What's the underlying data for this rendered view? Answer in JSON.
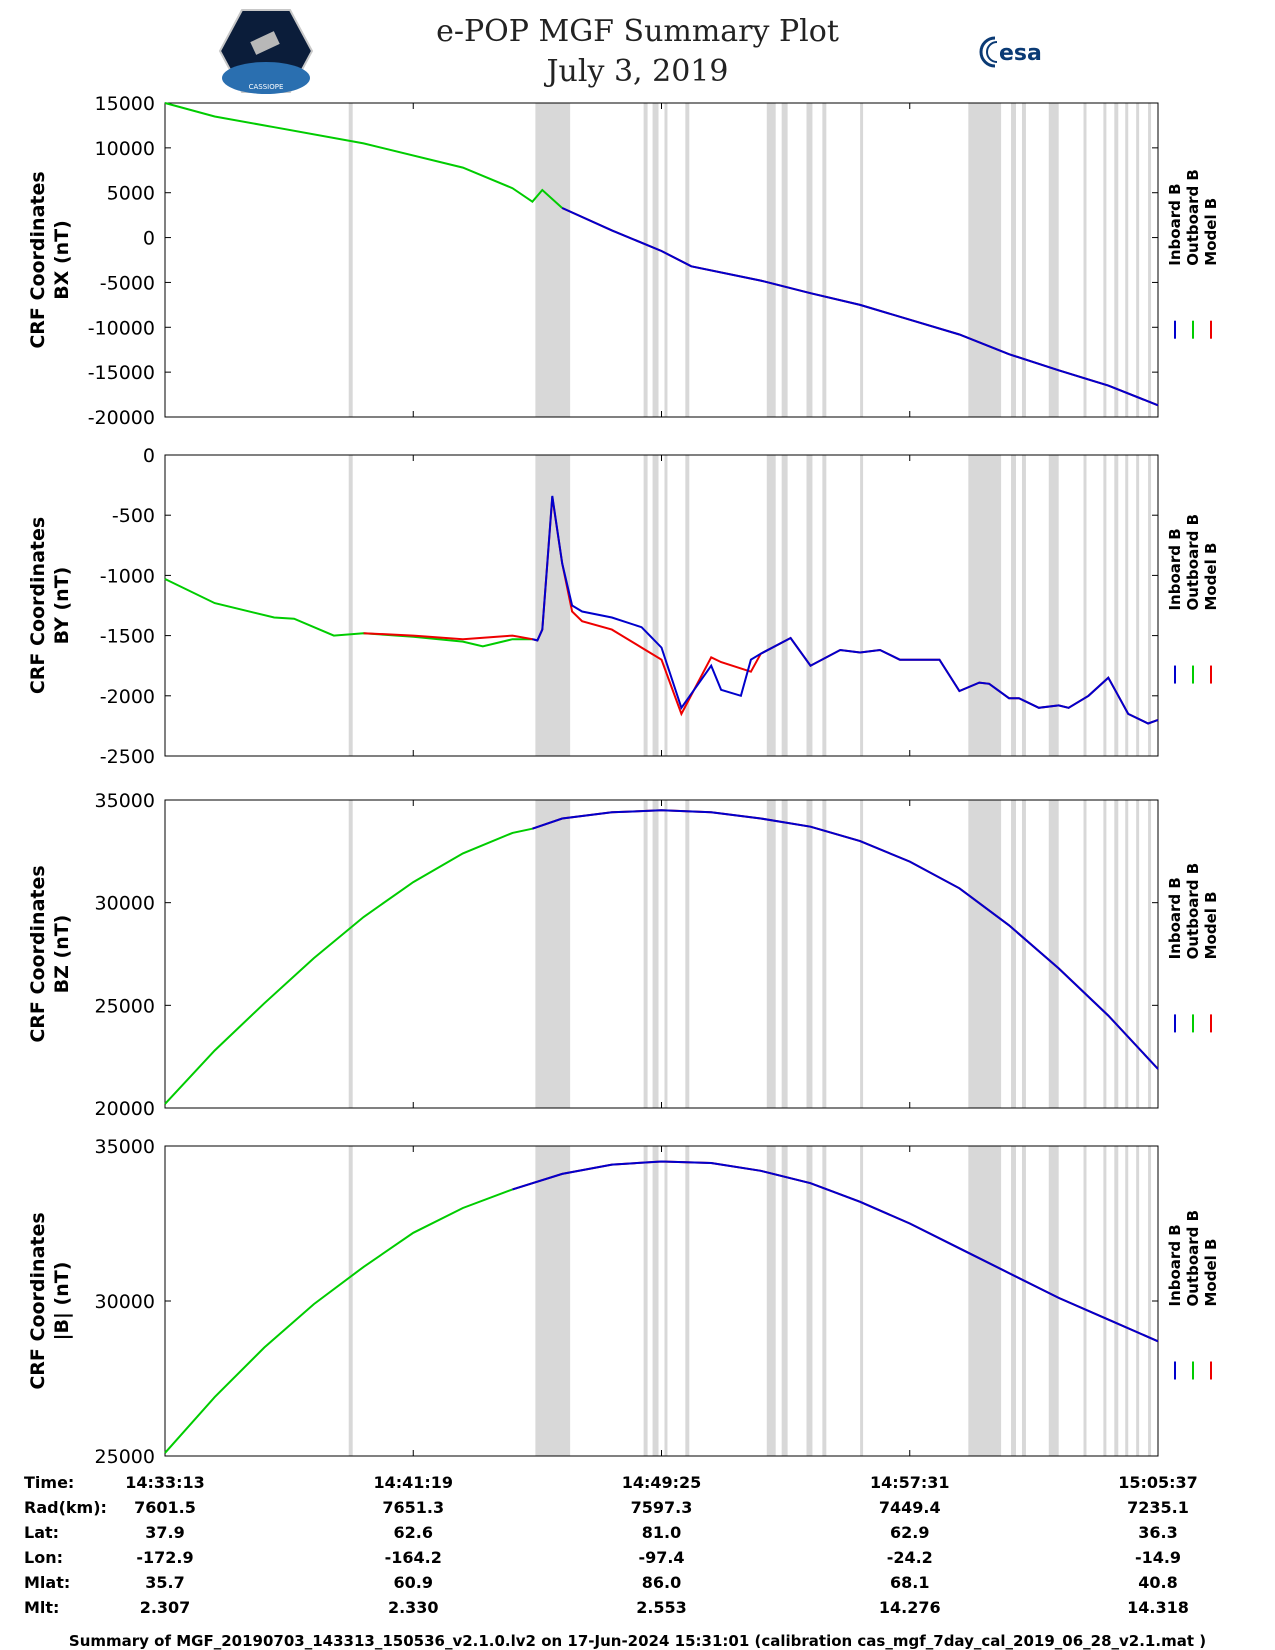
{
  "header": {
    "title": "e-POP MGF Summary Plot",
    "date": "July 3, 2019",
    "logo_left_text": "CASSIOPE",
    "logo_right_text": "esa"
  },
  "colors": {
    "inboard": "#0000cc",
    "outboard": "#00cc00",
    "model": "#ee0000",
    "shade": "#d8d8d8"
  },
  "chart_data": [
    {
      "type": "line",
      "ylabel_line1": "CRF Coordinates",
      "ylabel_line2": "BX (nT)",
      "ylim": [
        -20000,
        15000
      ],
      "yticks": [
        "15000",
        "10000",
        "5000",
        "0",
        "-5000",
        "-10000",
        "-15000",
        "-20000"
      ],
      "ytick_values": [
        15000,
        10000,
        5000,
        0,
        -5000,
        -10000,
        -15000,
        -20000
      ],
      "legend": [
        "Inboard B",
        "Outboard B",
        "Model B"
      ],
      "series": [
        {
          "name": "Outboard B",
          "color_key": "outboard",
          "x": [
            0,
            0.05,
            0.11,
            0.2,
            0.3,
            0.35,
            0.37,
            0.38,
            0.4
          ],
          "y": [
            15000,
            13500,
            12300,
            10500,
            7800,
            5500,
            4000,
            5300,
            3300
          ]
        },
        {
          "name": "Model B",
          "color_key": "model",
          "x": [
            0.4,
            0.45,
            0.5,
            0.53,
            0.6,
            0.65,
            0.7,
            0.8,
            0.85,
            0.9,
            0.95,
            1.0
          ],
          "y": [
            3300,
            800,
            -1500,
            -3200,
            -4800,
            -6200,
            -7500,
            -10800,
            -13000,
            -14800,
            -16500,
            -18700
          ]
        },
        {
          "name": "Inboard B",
          "color_key": "inboard",
          "x": [
            0.4,
            0.45,
            0.5,
            0.53,
            0.6,
            0.65,
            0.7,
            0.8,
            0.85,
            0.9,
            0.95,
            1.0
          ],
          "y": [
            3300,
            800,
            -1500,
            -3200,
            -4800,
            -6200,
            -7500,
            -10800,
            -13000,
            -14800,
            -16500,
            -18700
          ]
        }
      ]
    },
    {
      "type": "line",
      "ylabel_line1": "CRF Coordinates",
      "ylabel_line2": "BY (nT)",
      "ylim": [
        -2500,
        0
      ],
      "yticks": [
        "0",
        "-500",
        "-1000",
        "-1500",
        "-2000",
        "-2500"
      ],
      "ytick_values": [
        0,
        -500,
        -1000,
        -1500,
        -2000,
        -2500
      ],
      "legend": [
        "Inboard B",
        "Outboard B",
        "Model B"
      ],
      "series": [
        {
          "name": "Outboard B",
          "color_key": "outboard",
          "x": [
            0,
            0.05,
            0.11,
            0.13,
            0.17,
            0.2,
            0.25,
            0.3,
            0.32,
            0.35,
            0.37
          ],
          "y": [
            -1030,
            -1230,
            -1350,
            -1360,
            -1500,
            -1480,
            -1510,
            -1550,
            -1590,
            -1530,
            -1530
          ]
        },
        {
          "name": "Model B",
          "color_key": "model",
          "x": [
            0.2,
            0.25,
            0.3,
            0.35,
            0.37,
            0.375,
            0.38,
            0.385,
            0.39,
            0.4,
            0.41,
            0.42,
            0.45,
            0.48,
            0.5,
            0.52,
            0.55,
            0.56,
            0.59,
            0.6,
            0.63,
            0.65,
            0.68,
            0.7,
            0.72,
            0.74,
            0.75,
            0.78,
            0.8,
            0.82,
            0.83,
            0.85,
            0.86,
            0.88,
            0.9,
            0.91,
            0.93,
            0.95,
            0.96,
            0.97,
            0.99,
            1.0
          ],
          "y": [
            -1480,
            -1500,
            -1530,
            -1500,
            -1530,
            -1540,
            -1450,
            -900,
            -350,
            -900,
            -1300,
            -1380,
            -1450,
            -1600,
            -1700,
            -2150,
            -1680,
            -1720,
            -1800,
            -1650,
            -1520,
            -1750,
            -1620,
            -1640,
            -1620,
            -1700,
            -1700,
            -1700,
            -1960,
            -1890,
            -1900,
            -2020,
            -2020,
            -2100,
            -2080,
            -2100,
            -2000,
            -1850,
            -2000,
            -2150,
            -2230,
            -2200
          ]
        },
        {
          "name": "Inboard B",
          "color_key": "inboard",
          "x": [
            0.37,
            0.375,
            0.38,
            0.385,
            0.39,
            0.4,
            0.41,
            0.42,
            0.45,
            0.48,
            0.5,
            0.52,
            0.55,
            0.56,
            0.58,
            0.59,
            0.6,
            0.63,
            0.65,
            0.68,
            0.7,
            0.72,
            0.74,
            0.75,
            0.78,
            0.8,
            0.82,
            0.83,
            0.85,
            0.86,
            0.88,
            0.9,
            0.91,
            0.93,
            0.95,
            0.96,
            0.97,
            0.99,
            1.0
          ],
          "y": [
            -1530,
            -1540,
            -1450,
            -900,
            -340,
            -900,
            -1250,
            -1300,
            -1350,
            -1430,
            -1600,
            -2100,
            -1750,
            -1950,
            -2000,
            -1700,
            -1650,
            -1520,
            -1750,
            -1620,
            -1640,
            -1620,
            -1700,
            -1700,
            -1700,
            -1960,
            -1890,
            -1900,
            -2020,
            -2020,
            -2100,
            -2080,
            -2100,
            -2000,
            -1850,
            -2000,
            -2150,
            -2230,
            -2200
          ]
        }
      ]
    },
    {
      "type": "line",
      "ylabel_line1": "CRF Coordinates",
      "ylabel_line2": "BZ (nT)",
      "ylim": [
        20000,
        35000
      ],
      "yticks": [
        "35000",
        "30000",
        "25000",
        "20000"
      ],
      "ytick_values": [
        35000,
        30000,
        25000,
        20000
      ],
      "legend": [
        "Inboard B",
        "Outboard B",
        "Model B"
      ],
      "series": [
        {
          "name": "Outboard B",
          "color_key": "outboard",
          "x": [
            0,
            0.05,
            0.1,
            0.15,
            0.2,
            0.25,
            0.3,
            0.35,
            0.37
          ],
          "y": [
            20200,
            22800,
            25100,
            27300,
            29300,
            31000,
            32400,
            33400,
            33600
          ]
        },
        {
          "name": "Model B",
          "color_key": "model",
          "x": [
            0.37,
            0.4,
            0.45,
            0.5,
            0.55,
            0.6,
            0.65,
            0.7,
            0.75,
            0.8,
            0.85,
            0.9,
            0.95,
            1.0
          ],
          "y": [
            33600,
            34100,
            34400,
            34500,
            34400,
            34100,
            33700,
            33000,
            32000,
            30700,
            28900,
            26800,
            24500,
            21900
          ]
        },
        {
          "name": "Inboard B",
          "color_key": "inboard",
          "x": [
            0.37,
            0.4,
            0.45,
            0.5,
            0.55,
            0.6,
            0.65,
            0.7,
            0.75,
            0.8,
            0.85,
            0.9,
            0.95,
            1.0
          ],
          "y": [
            33600,
            34100,
            34400,
            34500,
            34400,
            34100,
            33700,
            33000,
            32000,
            30700,
            28900,
            26800,
            24500,
            21900
          ]
        }
      ]
    },
    {
      "type": "line",
      "ylabel_line1": "CRF Coordinates",
      "ylabel_line2": "|B| (nT)",
      "ylim": [
        25000,
        35000
      ],
      "yticks": [
        "35000",
        "30000",
        "25000"
      ],
      "ytick_values": [
        35000,
        30000,
        25000
      ],
      "legend": [
        "Inboard B",
        "Outboard B",
        "Model B"
      ],
      "series": [
        {
          "name": "Outboard B",
          "color_key": "outboard",
          "x": [
            0,
            0.05,
            0.1,
            0.15,
            0.2,
            0.25,
            0.3,
            0.35
          ],
          "y": [
            25100,
            26900,
            28500,
            29900,
            31100,
            32200,
            33000,
            33600
          ]
        },
        {
          "name": "Model B",
          "color_key": "model",
          "x": [
            0.35,
            0.4,
            0.45,
            0.5,
            0.55,
            0.6,
            0.65,
            0.7,
            0.75,
            0.8,
            0.85,
            0.9,
            0.95,
            1.0
          ],
          "y": [
            33600,
            34100,
            34400,
            34500,
            34450,
            34200,
            33800,
            33200,
            32500,
            31700,
            30900,
            30100,
            29400,
            28700
          ]
        },
        {
          "name": "Inboard B",
          "color_key": "inboard",
          "x": [
            0.35,
            0.4,
            0.45,
            0.5,
            0.55,
            0.6,
            0.65,
            0.7,
            0.75,
            0.8,
            0.85,
            0.9,
            0.95,
            1.0
          ],
          "y": [
            33600,
            34100,
            34400,
            34500,
            34450,
            34200,
            33800,
            33200,
            32500,
            31700,
            30900,
            30100,
            29400,
            28700
          ]
        }
      ]
    }
  ],
  "shaded_intervals": [
    [
      0.185,
      0.189
    ],
    [
      0.373,
      0.408
    ],
    [
      0.482,
      0.486
    ],
    [
      0.491,
      0.497
    ],
    [
      0.503,
      0.506
    ],
    [
      0.524,
      0.528
    ],
    [
      0.606,
      0.615
    ],
    [
      0.621,
      0.627
    ],
    [
      0.646,
      0.652
    ],
    [
      0.662,
      0.666
    ],
    [
      0.7,
      0.703
    ],
    [
      0.809,
      0.842
    ],
    [
      0.852,
      0.857
    ],
    [
      0.863,
      0.867
    ],
    [
      0.89,
      0.9
    ],
    [
      0.925,
      0.928
    ],
    [
      0.945,
      0.948
    ],
    [
      0.956,
      0.96
    ],
    [
      0.967,
      0.97
    ],
    [
      0.978,
      0.981
    ],
    [
      0.99,
      0.993
    ]
  ],
  "info_table": {
    "row_labels": [
      "Time:",
      "Rad(km):",
      "Lat:",
      "Lon:",
      "Mlat:",
      "Mlt:"
    ],
    "columns": [
      [
        "14:33:13",
        "7601.5",
        "37.9",
        "-172.9",
        "35.7",
        "2.307"
      ],
      [
        "14:41:19",
        "7651.3",
        "62.6",
        "-164.2",
        "60.9",
        "2.330"
      ],
      [
        "14:49:25",
        "7597.3",
        "81.0",
        "-97.4",
        "86.0",
        "2.553"
      ],
      [
        "14:57:31",
        "7449.4",
        "62.9",
        "-24.2",
        "68.1",
        "14.276"
      ],
      [
        "15:05:37",
        "7235.1",
        "36.3",
        "-14.9",
        "40.8",
        "14.318"
      ]
    ]
  },
  "footer": "Summary of MGF_20190703_143313_150536_v2.1.0.lv2 on 17-Jun-2024 15:31:01 (calibration cas_mgf_7day_cal_2019_06_28_v2.1.mat )"
}
